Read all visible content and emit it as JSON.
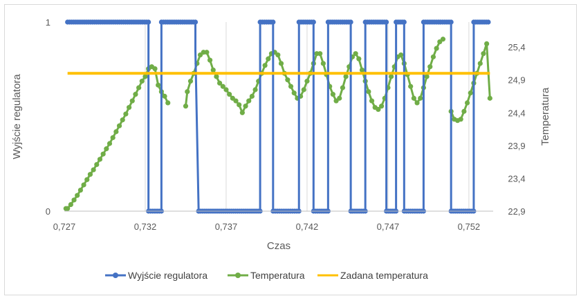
{
  "chart_data": {
    "type": "line",
    "xlabel": "Czas",
    "ylabel_left": "Wyjście regulatora",
    "ylabel_right": "Temperatura",
    "xlim": [
      0.727,
      0.7535
    ],
    "x_ticks": [
      0.727,
      0.732,
      0.737,
      0.742,
      0.747,
      0.752
    ],
    "x_tick_labels": [
      "0,727",
      "0,732",
      "0,737",
      "0,742",
      "0,747",
      "0,752"
    ],
    "ylim_left": [
      0,
      1
    ],
    "y_left_ticks": [
      0,
      1
    ],
    "y_left_tick_labels": [
      "0",
      "1"
    ],
    "ylim_right": [
      22.9,
      25.78
    ],
    "y_right_ticks": [
      22.9,
      23.4,
      23.9,
      24.4,
      24.9,
      25.4
    ],
    "y_right_tick_labels": [
      "22,9",
      "23,4",
      "23,9",
      "24,4",
      "24,9",
      "25,4"
    ],
    "vertical_gridlines": true,
    "legend_position": "bottom",
    "series": [
      {
        "name": "Wyjście regulatora",
        "axis": "left",
        "color": "#4472C4",
        "style": "step-markers",
        "x": [
          0.7272,
          0.7322,
          0.7322,
          0.733,
          0.733,
          0.7351,
          0.7351,
          0.7353,
          0.7353,
          0.7391,
          0.7391,
          0.7399,
          0.7399,
          0.7415,
          0.7415,
          0.7424,
          0.7424,
          0.7433,
          0.7433,
          0.7447,
          0.7447,
          0.7456,
          0.7456,
          0.7469,
          0.7469,
          0.7475,
          0.7475,
          0.748,
          0.748,
          0.7492,
          0.7492,
          0.7509,
          0.7509,
          0.7523,
          0.7523,
          0.7532
        ],
        "values": [
          1,
          1,
          0,
          0,
          1,
          1,
          0.85,
          0,
          0,
          0,
          1,
          1,
          0,
          0,
          1,
          1,
          0,
          0,
          1,
          1,
          0,
          0,
          1,
          1,
          0,
          0,
          1,
          1,
          0,
          0,
          1,
          1,
          0,
          0,
          1,
          1
        ]
      },
      {
        "name": "Temperatura",
        "axis": "right",
        "color": "#70AD47",
        "style": "line-markers",
        "x": [
          0.7271,
          0.7272,
          0.7274,
          0.7276,
          0.7278,
          0.728,
          0.7282,
          0.7284,
          0.7286,
          0.7288,
          0.729,
          0.7292,
          0.7294,
          0.7296,
          0.7298,
          0.73,
          0.7302,
          0.7304,
          0.7306,
          0.7308,
          0.731,
          0.7312,
          0.7314,
          0.7316,
          0.7318,
          0.732,
          0.7322,
          0.7324,
          0.7326,
          0.7328,
          0.733,
          0.7332,
          0.7334
        ],
        "values": [
          22.94,
          22.94,
          23.0,
          23.07,
          23.14,
          23.22,
          23.3,
          23.38,
          23.46,
          23.53,
          23.61,
          23.69,
          23.77,
          23.85,
          23.93,
          24.02,
          24.11,
          24.2,
          24.29,
          24.38,
          24.48,
          24.58,
          24.68,
          24.78,
          24.88,
          24.95,
          25.07,
          25.1,
          25.07,
          24.82,
          24.72,
          24.65,
          24.55
        ]
      },
      {
        "name": "Temperatura",
        "axis": "right",
        "color": "#70AD47",
        "style": "line-markers",
        "x": [
          0.7345,
          0.7346,
          0.7348,
          0.735,
          0.7352,
          0.7354,
          0.7356,
          0.7358,
          0.736,
          0.7362,
          0.7364,
          0.7366,
          0.7368,
          0.737,
          0.7372,
          0.7374,
          0.7376,
          0.7378,
          0.738,
          0.7382,
          0.7384,
          0.7386,
          0.7388,
          0.739,
          0.7392,
          0.7394,
          0.7396,
          0.7398,
          0.74,
          0.7402,
          0.7404,
          0.7406,
          0.7408,
          0.741,
          0.7412,
          0.7414,
          0.7416,
          0.7418,
          0.742,
          0.7422,
          0.7424,
          0.7426,
          0.7428,
          0.743,
          0.7432,
          0.7434,
          0.7436,
          0.7438,
          0.744,
          0.7442,
          0.7444,
          0.7446,
          0.7448,
          0.745,
          0.7452,
          0.7454,
          0.7456,
          0.7458,
          0.746,
          0.7462,
          0.7464,
          0.7466,
          0.7468,
          0.747,
          0.7472,
          0.7474,
          0.7476,
          0.7478,
          0.748,
          0.7482,
          0.7484,
          0.7486,
          0.7488,
          0.749,
          0.7492,
          0.7494,
          0.7496,
          0.7498,
          0.75,
          0.7502,
          0.7504
        ],
        "values": [
          24.5,
          24.72,
          24.88,
          25.0,
          25.15,
          25.28,
          25.32,
          25.32,
          25.2,
          25.05,
          24.95,
          24.85,
          24.8,
          24.75,
          24.68,
          24.62,
          24.58,
          24.52,
          24.4,
          24.5,
          24.58,
          24.65,
          24.75,
          24.88,
          25.0,
          25.12,
          25.22,
          25.3,
          25.32,
          25.28,
          25.15,
          25.0,
          24.9,
          24.8,
          24.7,
          24.62,
          24.65,
          24.75,
          24.88,
          25.0,
          25.15,
          25.3,
          25.3,
          25.15,
          24.98,
          24.8,
          24.68,
          24.58,
          24.62,
          24.78,
          24.95,
          25.1,
          25.25,
          25.3,
          25.22,
          25.05,
          24.88,
          24.72,
          24.58,
          24.48,
          24.45,
          24.5,
          24.62,
          24.78,
          24.95,
          25.1,
          25.25,
          25.28,
          25.15,
          24.98,
          24.8,
          24.62,
          24.55,
          24.62,
          24.78,
          24.95,
          25.1,
          25.25,
          25.38,
          25.48,
          25.52
        ]
      },
      {
        "name": "Temperatura",
        "axis": "right",
        "color": "#70AD47",
        "style": "line-markers",
        "x": [
          0.7509,
          0.7511,
          0.7513,
          0.7515,
          0.7517,
          0.7519,
          0.7521,
          0.7523,
          0.7525,
          0.7527,
          0.7529,
          0.7531,
          0.7533
        ],
        "values": [
          24.42,
          24.3,
          24.28,
          24.3,
          24.42,
          24.55,
          24.7,
          24.85,
          25.0,
          25.15,
          25.3,
          25.45,
          24.62
        ]
      },
      {
        "name": "Zadana temperatura",
        "axis": "right",
        "color": "#FFC000",
        "style": "line",
        "x": [
          0.7272,
          0.7533
        ],
        "values": [
          25.0,
          25.0
        ]
      }
    ],
    "legend": [
      {
        "label": "Wyjście regulatora",
        "color": "#4472C4"
      },
      {
        "label": "Temperatura",
        "color": "#70AD47"
      },
      {
        "label": "Zadana temperatura",
        "color": "#FFC000"
      }
    ]
  }
}
